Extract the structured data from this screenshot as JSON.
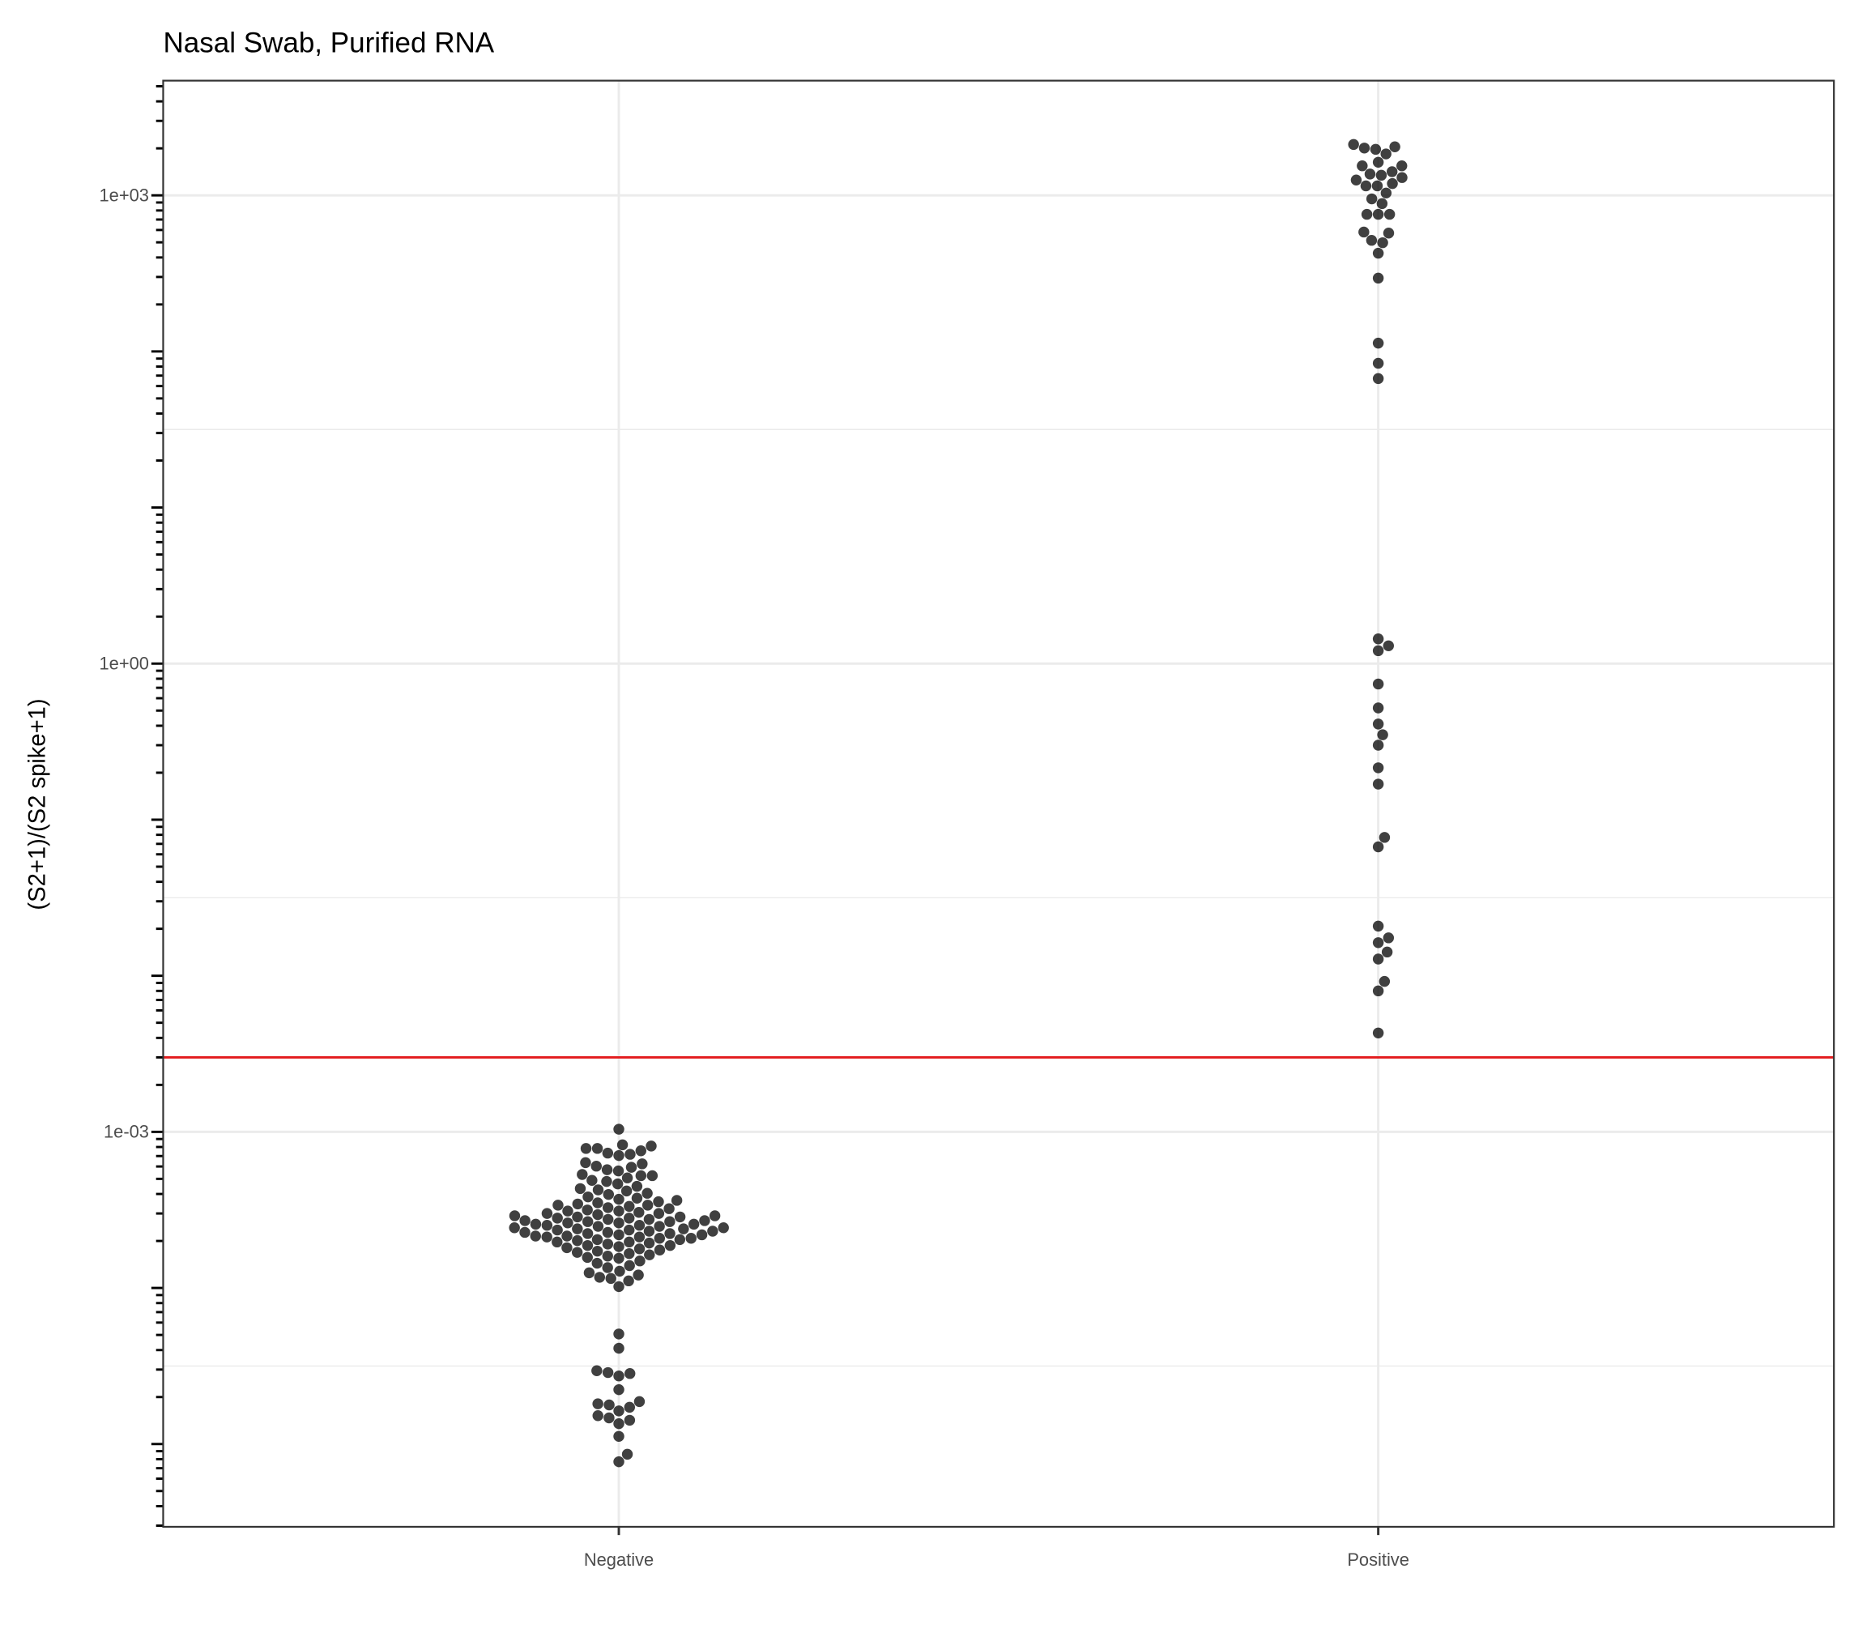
{
  "chart_data": {
    "type": "beeswarm",
    "title": "Nasal Swab, Purified RNA",
    "y_label": "(S2+1)/(S2 spike+1)",
    "categories": [
      "Negative",
      "Positive"
    ],
    "color": "#000000",
    "alpha": 0.75,
    "log_y": true,
    "grid": true,
    "ylim": [
      2.95e-06,
      5430
    ],
    "yticks": [
      {
        "value": 0.001,
        "label": "1e-03"
      },
      {
        "value": 1,
        "label": "1e+00"
      },
      {
        "value": 1000,
        "label": "1e+03"
      }
    ],
    "hline": {
      "value": 0.003,
      "color": "#e31a1c"
    },
    "values": [
      [
        0.00104,
        0.000826,
        0.000811,
        0.000783,
        0.000783,
        0.000756,
        0.000731,
        0.000718,
        0.000705,
        0.000635,
        0.000624,
        0.000603,
        0.000593,
        0.000572,
        0.000562,
        0.000533,
        0.000524,
        0.000524,
        0.000507,
        0.000489,
        0.000481,
        0.000464,
        0.000448,
        0.000433,
        0.000425,
        0.000418,
        0.000404,
        0.000397,
        0.000383,
        0.000376,
        0.00037,
        0.000364,
        0.000357,
        0.000351,
        0.000345,
        0.000339,
        0.000339,
        0.000333,
        0.000327,
        0.000322,
        0.000316,
        0.000311,
        0.000311,
        0.000305,
        0.0003,
        0.0003,
        0.000295,
        0.00029,
        0.00029,
        0.000285,
        0.000285,
        0.00028,
        0.00028,
        0.000275,
        0.000275,
        0.00027,
        0.00027,
        0.000266,
        0.000266,
        0.000261,
        0.000261,
        0.000256,
        0.000256,
        0.000252,
        0.000252,
        0.000248,
        0.000248,
        0.000243,
        0.000243,
        0.000239,
        0.000239,
        0.000235,
        0.000235,
        0.000231,
        0.000231,
        0.000227,
        0.000227,
        0.000223,
        0.000223,
        0.000219,
        0.000219,
        0.000215,
        0.000215,
        0.000212,
        0.000212,
        0.000208,
        0.000208,
        0.000204,
        0.000204,
        0.000201,
        0.000197,
        0.000197,
        0.000194,
        0.000191,
        0.000187,
        0.000187,
        0.000184,
        0.000181,
        0.000178,
        0.000175,
        0.000172,
        0.000169,
        0.000166,
        0.000163,
        0.00016,
        0.000157,
        0.000155,
        0.000149,
        0.000144,
        0.000139,
        0.000135,
        0.000128,
        0.000125,
        0.000121,
        0.000117,
        0.000115,
        0.000111,
        0.000102,
        5.07e-05,
        4.11e-05,
        2.95e-05,
        2.87e-05,
        2.83e-05,
        2.73e-05,
        2.23e-05,
        1.87e-05,
        1.81e-05,
        1.78e-05,
        1.72e-05,
        1.63e-05,
        1.52e-05,
        1.47e-05,
        1.42e-05,
        1.35e-05,
        1.12e-05,
        8.6e-06,
        7.7e-06
      ],
      [
        756,
        1300,
        1972,
        1150,
        1546,
        949,
        573,
        295,
        2046,
        1369,
        497,
        1190,
        1630,
        756,
        885,
        2009,
        426,
        1345,
        1150,
        582,
        1546,
        2118,
        1035,
        515,
        1418,
        1254,
        1842,
        756,
        84,
        67,
        113,
        1.44,
        1.21,
        1.3,
        0.74,
        0.52,
        0.41,
        0.35,
        0.3,
        0.215,
        0.169,
        0.077,
        0.067,
        0.0208,
        0.0175,
        0.0163,
        0.0142,
        0.0128,
        0.0092,
        0.008,
        0.0043
      ]
    ]
  }
}
